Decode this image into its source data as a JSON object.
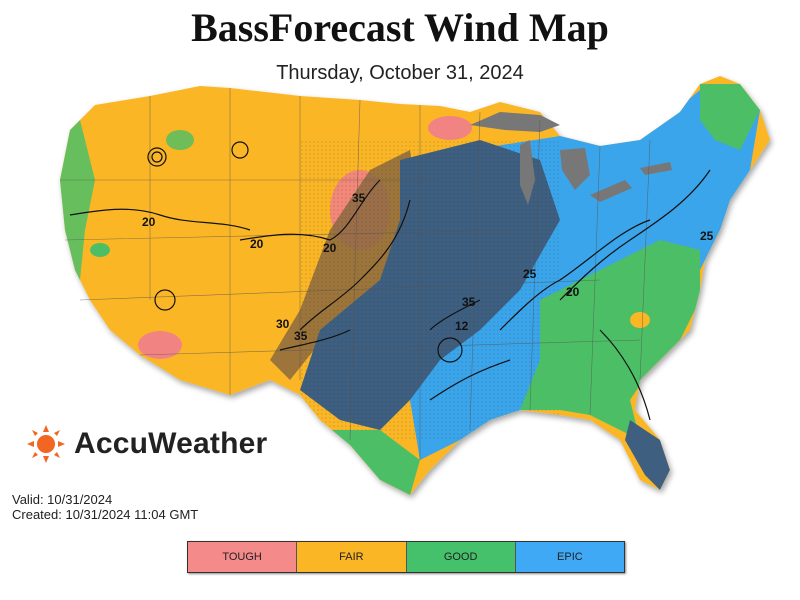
{
  "title": "BassForecast Wind Map",
  "subtitle": "Thursday, October 31, 2024",
  "brand": {
    "name": "AccuWeather",
    "icon": "sun-icon",
    "color": "#f26522"
  },
  "valid_text": "Valid: 10/31/2024",
  "created_text": "Created: 10/31/2024 11:04 GMT",
  "contour_labels": [
    "20",
    "20",
    "35",
    "20",
    "30",
    "35",
    "35",
    "12",
    "20",
    "25",
    "25"
  ],
  "legend": [
    {
      "label": "TOUGH",
      "color": "#f48a8a"
    },
    {
      "label": "FAIR",
      "color": "#fbb626"
    },
    {
      "label": "GOOD",
      "color": "#45c16b"
    },
    {
      "label": "EPIC",
      "color": "#3fa9f5"
    }
  ],
  "map_colors": {
    "fair": "#fbb626",
    "good": "#4cbf66",
    "epic": "#3aa5ea",
    "calm_dark": "#3e5f80",
    "tough": "#f28383",
    "water": "#777777"
  }
}
